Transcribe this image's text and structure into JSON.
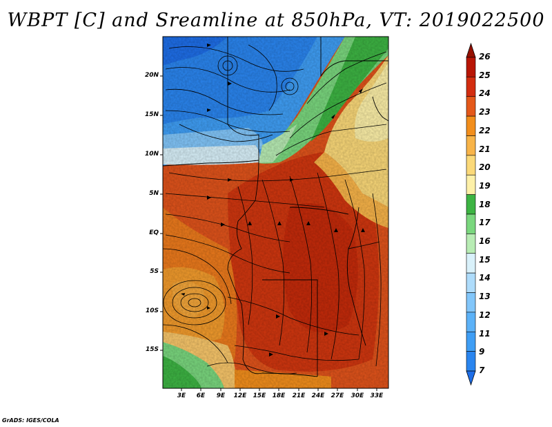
{
  "title": "WBPT [C] and Sreamline at 850hPa, VT: 2019022500",
  "footer": "GrADS: IGES/COLA",
  "lat_labels": [
    "20N",
    "15N",
    "10N",
    "5N",
    "EQ",
    "5S",
    "10S",
    "15S"
  ],
  "lon_labels": [
    "3E",
    "6E",
    "9E",
    "12E",
    "15E",
    "18E",
    "21E",
    "24E",
    "27E",
    "30E",
    "33E"
  ],
  "colorbar": {
    "levels": [
      "7",
      "9",
      "11",
      "12",
      "13",
      "14",
      "15",
      "16",
      "17",
      "18",
      "19",
      "20",
      "21",
      "22",
      "23",
      "24",
      "25",
      "26"
    ],
    "colors": [
      "#1e6ee8",
      "#2a85ef",
      "#3f9ef5",
      "#5cb2f8",
      "#82c6fa",
      "#aedcfb",
      "#d9f1fa",
      "#b8ecb4",
      "#7ad77e",
      "#3db443",
      "#fdf0a8",
      "#fbd979",
      "#f8b449",
      "#f28e1c",
      "#e4581a",
      "#d32d10",
      "#b81505",
      "#951000"
    ]
  }
}
